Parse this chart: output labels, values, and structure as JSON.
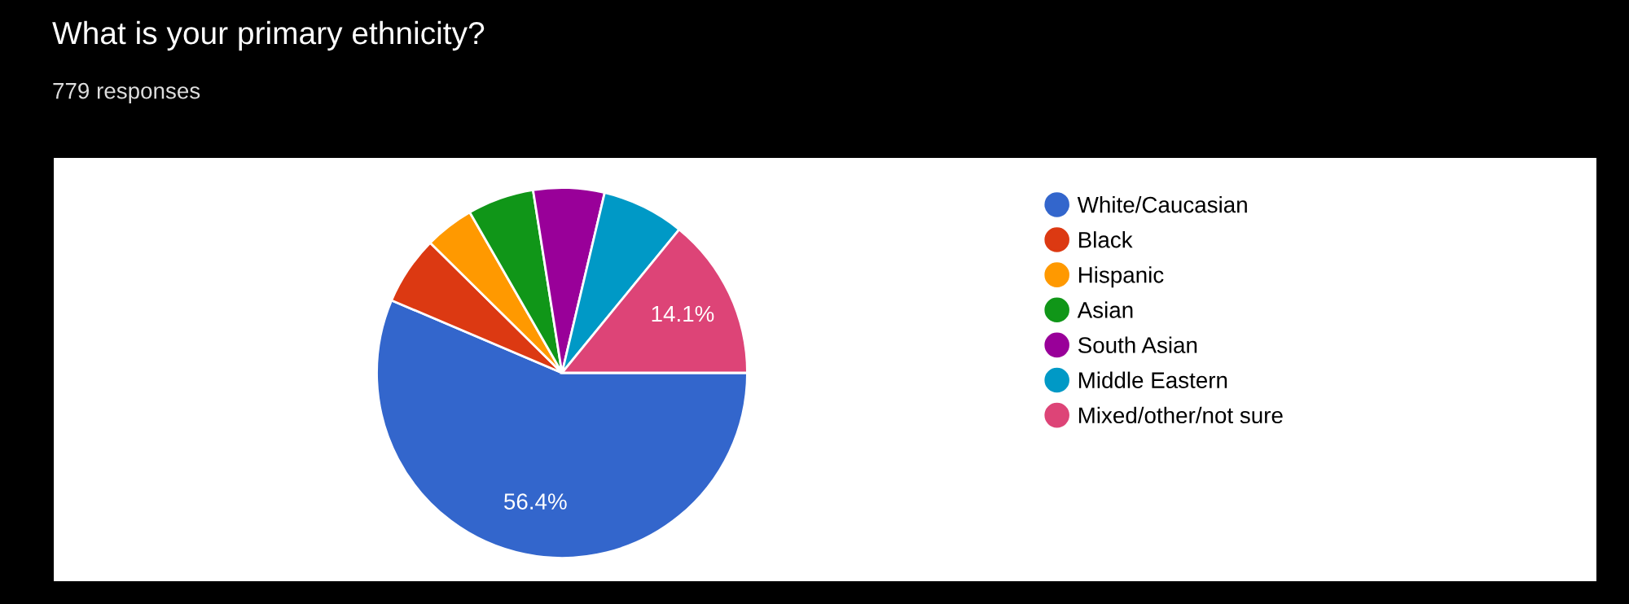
{
  "chart_data": {
    "type": "pie",
    "title": "What is your primary ethnicity?",
    "subtitle": "779 responses",
    "categories": [
      "White/Caucasian",
      "Black",
      "Hispanic",
      "Asian",
      "South Asian",
      "Middle Eastern",
      "Mixed/other/not sure"
    ],
    "values": [
      56.4,
      6.0,
      4.3,
      5.8,
      6.2,
      7.2,
      14.1
    ],
    "colors": [
      "#3366cc",
      "#dc3912",
      "#ff9900",
      "#109618",
      "#990099",
      "#0099c6",
      "#dd4477"
    ],
    "value_labels": [
      "56.4%",
      null,
      null,
      null,
      null,
      null,
      "14.1%"
    ],
    "legend": "right"
  }
}
